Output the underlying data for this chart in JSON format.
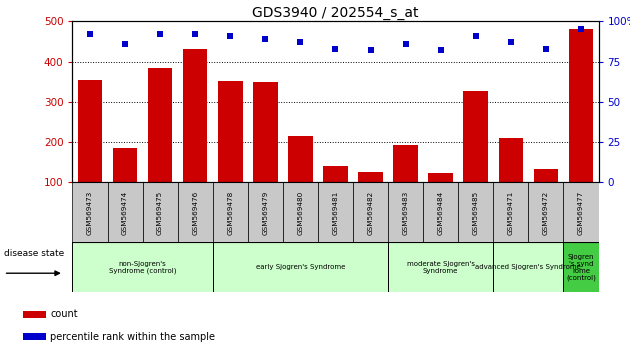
{
  "title": "GDS3940 / 202554_s_at",
  "samples": [
    "GSM569473",
    "GSM569474",
    "GSM569475",
    "GSM569476",
    "GSM569478",
    "GSM569479",
    "GSM569480",
    "GSM569481",
    "GSM569482",
    "GSM569483",
    "GSM569484",
    "GSM569485",
    "GSM569471",
    "GSM569472",
    "GSM569477"
  ],
  "counts": [
    355,
    185,
    385,
    432,
    352,
    350,
    215,
    140,
    125,
    193,
    123,
    328,
    210,
    133,
    480
  ],
  "percentiles": [
    92,
    86,
    92,
    92,
    91,
    89,
    87,
    83,
    82,
    86,
    82,
    91,
    87,
    83,
    95
  ],
  "bar_color": "#cc0000",
  "dot_color": "#0000cc",
  "ylim_left": [
    100,
    500
  ],
  "ylim_right": [
    0,
    100
  ],
  "yticks_left": [
    100,
    200,
    300,
    400,
    500
  ],
  "yticks_right": [
    0,
    25,
    50,
    75,
    100
  ],
  "group_starts": [
    0,
    4,
    9,
    12,
    14
  ],
  "group_ends": [
    4,
    9,
    12,
    14,
    15
  ],
  "group_colors": [
    "#ccffcc",
    "#ccffcc",
    "#ccffcc",
    "#ccffcc",
    "#44cc44"
  ],
  "group_texts": [
    "non-Sjogren's\nSyndrome (control)",
    "early Sjogren's Syndrome",
    "moderate Sjogren's\nSyndrome",
    "advanced Sjogren's Syndrome",
    "Sjogren\n's synd\nrome\n(control)"
  ],
  "tick_label_color_left": "#cc0000",
  "tick_label_color_right": "#0000cc",
  "grid_yticks": [
    200,
    300,
    400
  ],
  "sample_box_color": "#c8c8c8",
  "title_fontsize": 10,
  "bar_width": 0.7
}
